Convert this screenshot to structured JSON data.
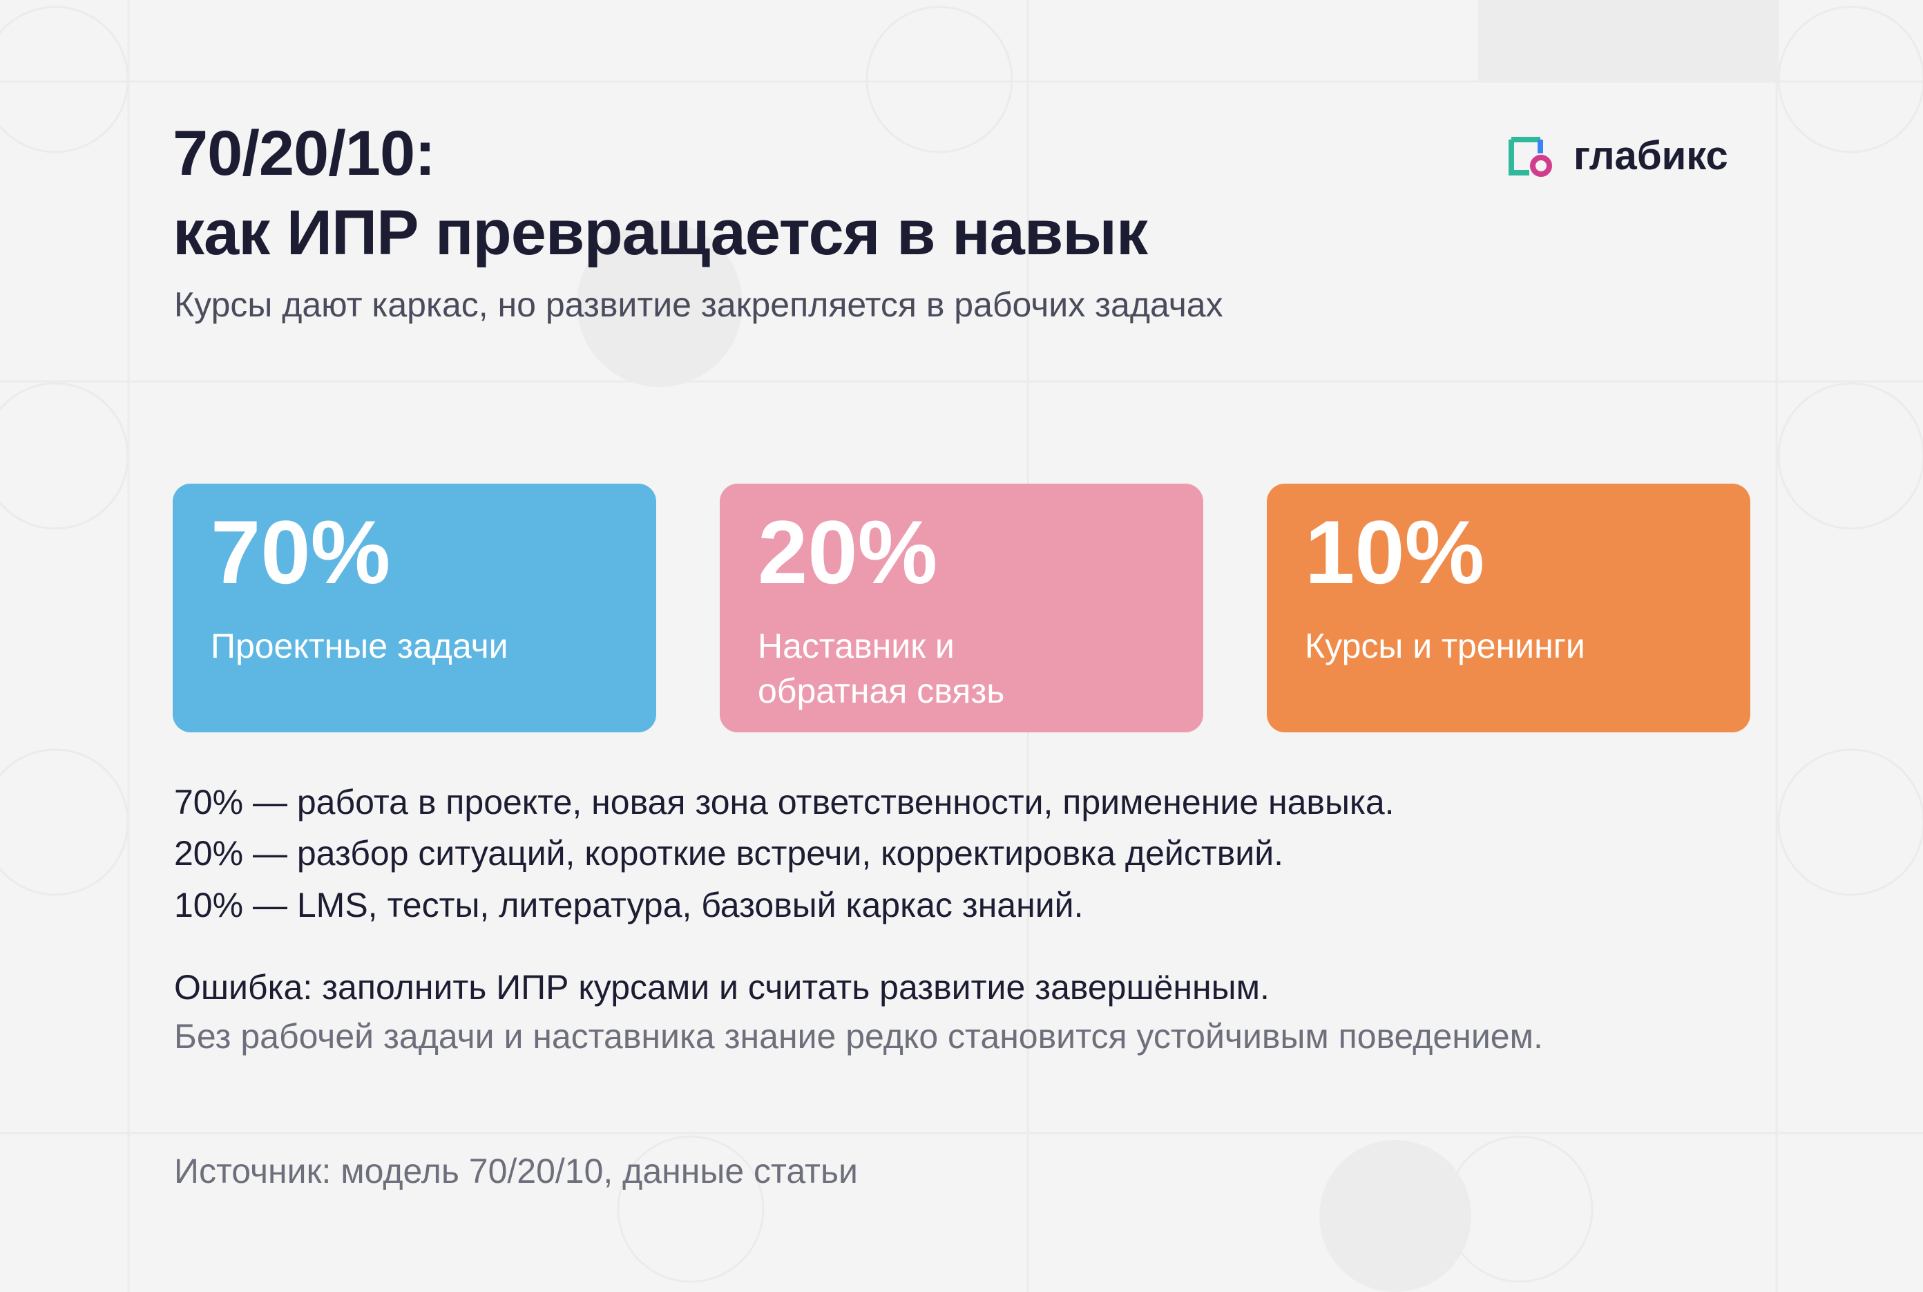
{
  "header": {
    "title_lines": [
      "70/20/10:",
      "как ИПР превращается в навык"
    ],
    "subtitle": "Курсы дают каркас, но развитие закрепляется в рабочих задачах"
  },
  "logo": {
    "text": "глабикс"
  },
  "cards": [
    {
      "percent": "70%",
      "label_lines": [
        "Проектные задачи"
      ]
    },
    {
      "percent": "20%",
      "label_lines": [
        "Наставник и",
        "обратная связь"
      ]
    },
    {
      "percent": "10%",
      "label_lines": [
        "Курсы и тренинги"
      ]
    }
  ],
  "details": [
    "70% — работа в проекте, новая зона ответственности, применение навыка.",
    "20% — разбор ситуаций, короткие встречи, корректировка действий.",
    "10% — LMS, тесты, литература, базовый каркас знаний."
  ],
  "note": {
    "headline": "Ошибка: заполнить ИПР курсами и считать развитие завершённым.",
    "text": "Без рабочей задачи и наставника знание редко становится устойчивым поведением."
  },
  "source": "Источник: модель 70/20/10, данные статьи"
}
